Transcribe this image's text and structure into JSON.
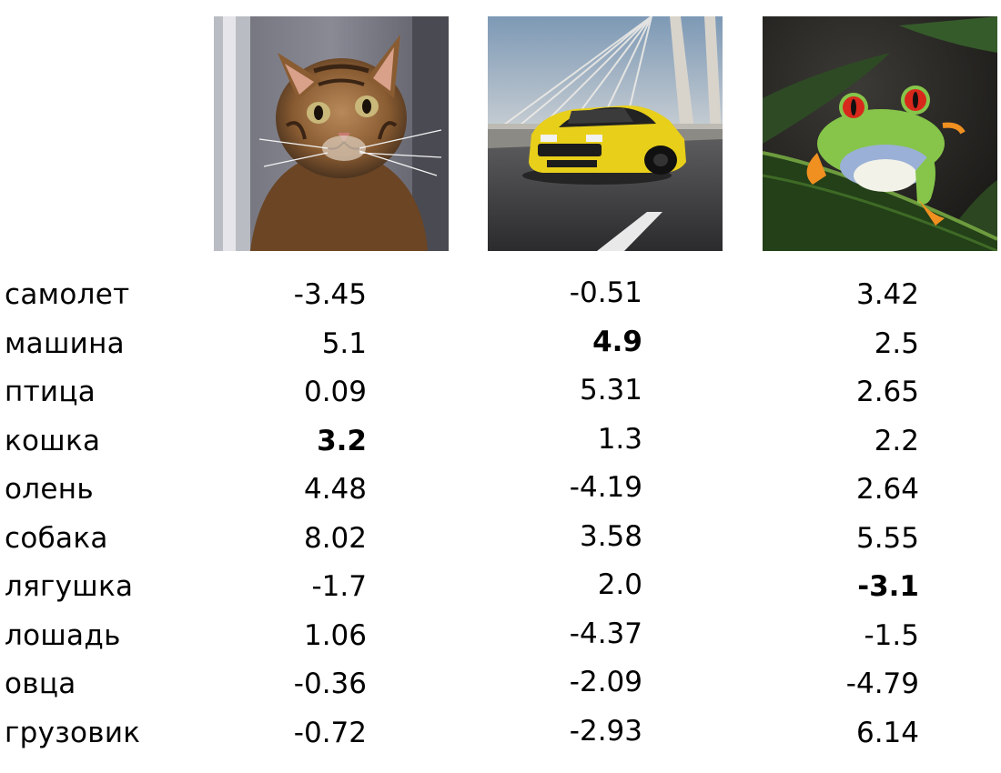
{
  "images": [
    {
      "name": "cat-photo",
      "description_icon": "cat-image"
    },
    {
      "name": "car-photo",
      "description_icon": "car-image"
    },
    {
      "name": "frog-photo",
      "description_icon": "frog-image"
    }
  ],
  "table": {
    "rows": [
      {
        "label": "самолет",
        "values": [
          "-3.45",
          "-0.51",
          "3.42"
        ]
      },
      {
        "label": "машина",
        "values": [
          "5.1",
          "4.9",
          "2.5"
        ]
      },
      {
        "label": "птица",
        "values": [
          "0.09",
          "5.31",
          "2.65"
        ]
      },
      {
        "label": "кошка",
        "values": [
          "3.2",
          "1.3",
          "2.2"
        ]
      },
      {
        "label": "олень",
        "values": [
          "4.48",
          "-4.19",
          "2.64"
        ]
      },
      {
        "label": "собака",
        "values": [
          "8.02",
          "3.58",
          "5.55"
        ]
      },
      {
        "label": "лягушка",
        "values": [
          "-1.7",
          "2.0",
          "-3.1"
        ]
      },
      {
        "label": "лошадь",
        "values": [
          "1.06",
          "-4.37",
          "-1.5"
        ]
      },
      {
        "label": "овца",
        "values": [
          "-0.36",
          "-2.09",
          "-4.79"
        ]
      },
      {
        "label": "грузовик",
        "values": [
          "-0.72",
          "-2.93",
          "6.14"
        ]
      }
    ],
    "bold_cells": [
      {
        "row": 3,
        "col": 0
      },
      {
        "row": 1,
        "col": 1
      },
      {
        "row": 6,
        "col": 2
      }
    ]
  }
}
